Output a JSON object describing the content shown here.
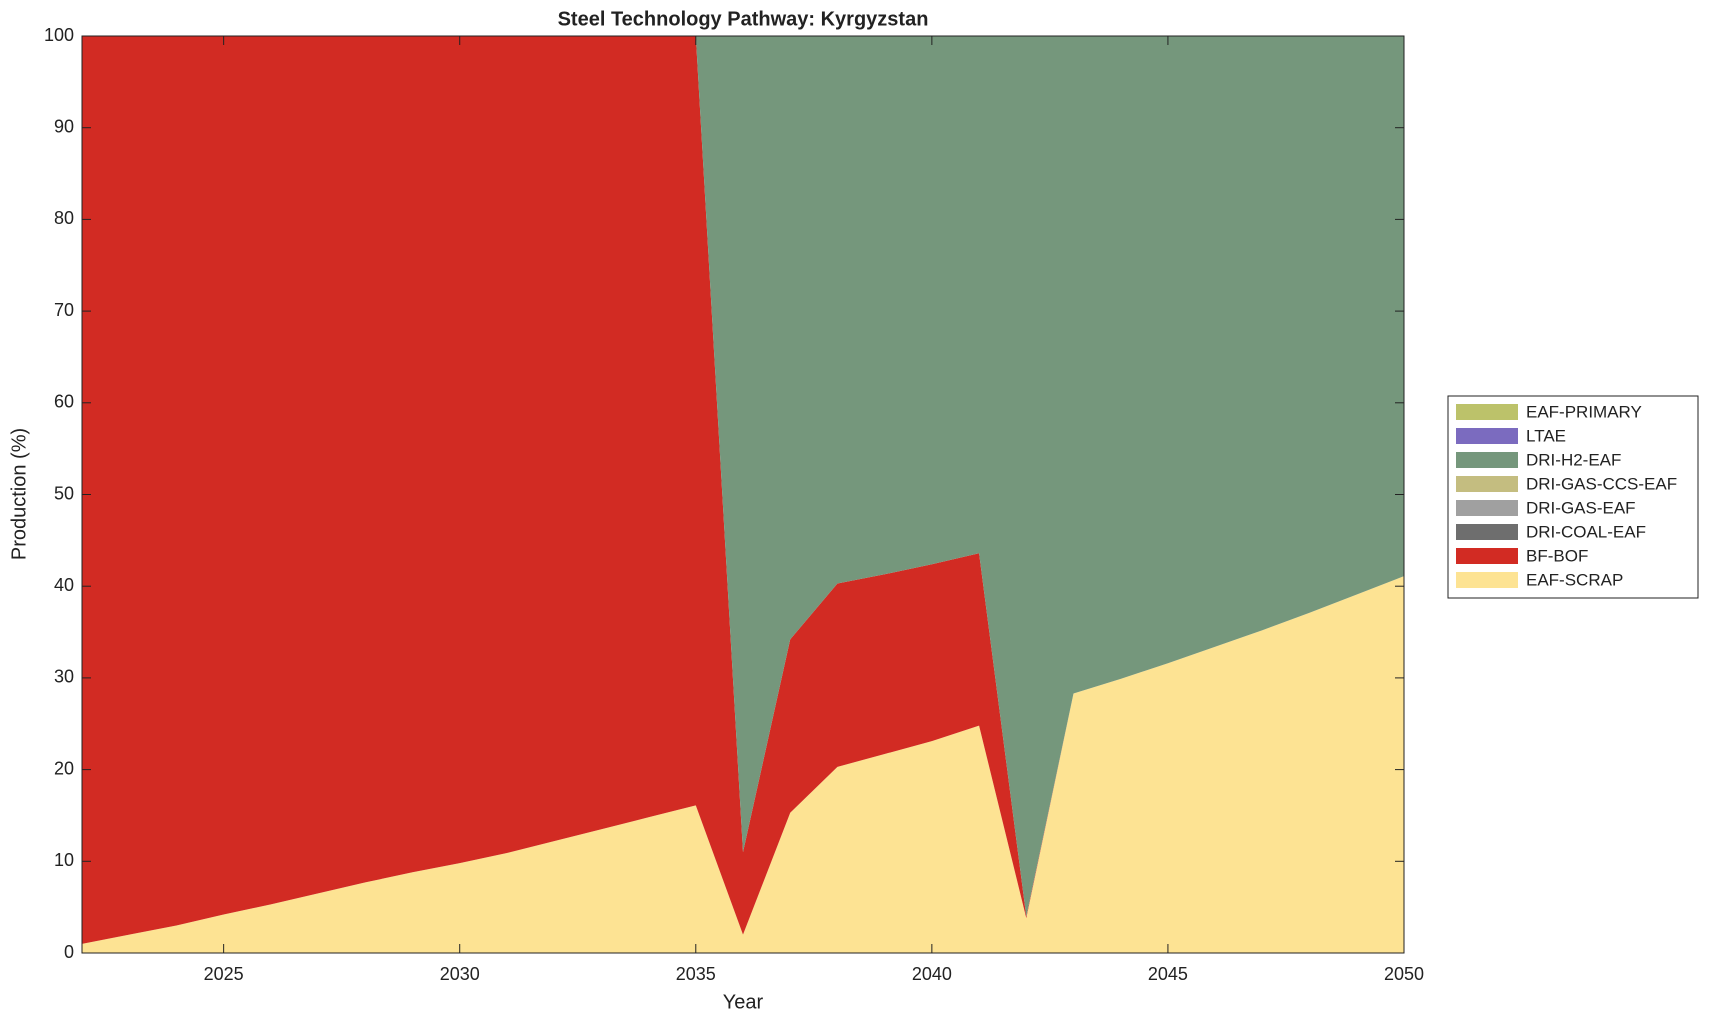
{
  "chart_data": {
    "type": "stacked_area",
    "title": "Steel Technology Pathway: Kyrgyzstan",
    "x_label": "Year",
    "y_label": "Production (%)",
    "x": [
      2022,
      2023,
      2024,
      2025,
      2026,
      2027,
      2028,
      2029,
      2030,
      2031,
      2032,
      2033,
      2034,
      2035,
      2036,
      2037,
      2038,
      2039,
      2040,
      2041,
      2042,
      2043,
      2044,
      2045,
      2046,
      2047,
      2048,
      2049,
      2050
    ],
    "xlim": [
      2022,
      2050
    ],
    "xticks": [
      2025,
      2030,
      2035,
      2040,
      2045,
      2050
    ],
    "ylim": [
      0,
      100
    ],
    "yticks": [
      0,
      10,
      20,
      30,
      40,
      50,
      60,
      70,
      80,
      90,
      100
    ],
    "grid": false,
    "legend": "outside right",
    "series": [
      {
        "name": "EAF-SCRAP",
        "color": "#fde393",
        "values": [
          1,
          2,
          3,
          4.2,
          5.3,
          6.5,
          7.7,
          8.8,
          9.8,
          10.9,
          12.2,
          13.5,
          14.8,
          16.1,
          2,
          15.3,
          20.3,
          21.7,
          23.1,
          24.8,
          3.8,
          28.3,
          29.9,
          31.6,
          33.4,
          35.2,
          37.1,
          39.1,
          41.1
        ]
      },
      {
        "name": "BF-BOF",
        "color": "#d22b23",
        "values": [
          99,
          98,
          97,
          95.8,
          94.7,
          93.5,
          92.3,
          91.2,
          90.2,
          89.1,
          87.8,
          86.5,
          85.2,
          83.9,
          9,
          18.9,
          20,
          19.6,
          19.3,
          18.8,
          0.2,
          0,
          0,
          0,
          0,
          0,
          0,
          0,
          0
        ]
      },
      {
        "name": "DRI-COAL-EAF",
        "color": "#6e6e6e",
        "values": [
          0,
          0,
          0,
          0,
          0,
          0,
          0,
          0,
          0,
          0,
          0,
          0,
          0,
          0,
          0,
          0,
          0,
          0,
          0,
          0,
          0,
          0,
          0,
          0,
          0,
          0,
          0,
          0,
          0
        ]
      },
      {
        "name": "DRI-GAS-EAF",
        "color": "#a0a0a0",
        "values": [
          0,
          0,
          0,
          0,
          0,
          0,
          0,
          0,
          0,
          0,
          0,
          0,
          0,
          0,
          0,
          0,
          0,
          0,
          0,
          0,
          0,
          0,
          0,
          0,
          0,
          0,
          0,
          0,
          0
        ]
      },
      {
        "name": "DRI-GAS-CCS-EAF",
        "color": "#c4bd80",
        "values": [
          0,
          0,
          0,
          0,
          0,
          0,
          0,
          0,
          0,
          0,
          0,
          0,
          0,
          0,
          0,
          0,
          0,
          0,
          0,
          0,
          0,
          0,
          0,
          0,
          0,
          0,
          0,
          0,
          0
        ]
      },
      {
        "name": "DRI-H2-EAF",
        "color": "#75977c",
        "values": [
          0,
          0,
          0,
          0,
          0,
          0,
          0,
          0,
          0,
          0,
          0,
          0,
          0,
          0,
          89,
          65.8,
          59.7,
          58.7,
          57.6,
          56.4,
          96,
          71.7,
          70.1,
          68.4,
          66.6,
          64.8,
          62.9,
          60.9,
          58.9
        ]
      },
      {
        "name": "LTAE",
        "color": "#7b6bbf",
        "values": [
          0,
          0,
          0,
          0,
          0,
          0,
          0,
          0,
          0,
          0,
          0,
          0,
          0,
          0,
          0,
          0,
          0,
          0,
          0,
          0,
          0,
          0,
          0,
          0,
          0,
          0,
          0,
          0,
          0
        ]
      },
      {
        "name": "EAF-PRIMARY",
        "color": "#bcc26a",
        "values": [
          0,
          0,
          0,
          0,
          0,
          0,
          0,
          0,
          0,
          0,
          0,
          0,
          0,
          0,
          0,
          0,
          0,
          0,
          0,
          0,
          0,
          0,
          0,
          0,
          0,
          0,
          0,
          0,
          0
        ]
      }
    ]
  }
}
